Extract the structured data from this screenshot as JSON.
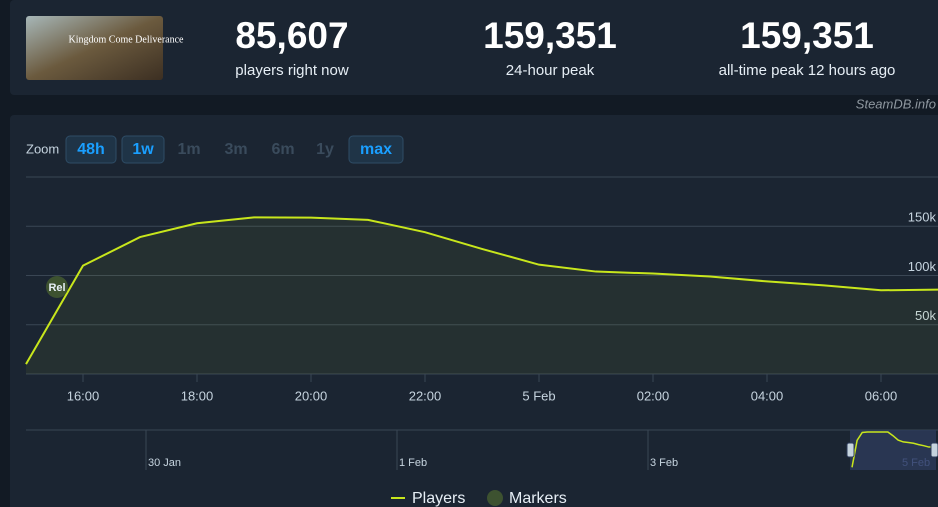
{
  "header": {
    "game_logo": "Kingdom Come Deliverance",
    "stats": [
      {
        "value": "85,607",
        "label": "players right now"
      },
      {
        "value": "159,351",
        "label": "24-hour peak"
      },
      {
        "value": "159,351",
        "label": "all-time peak 12 hours ago"
      }
    ],
    "credit": "SteamDB.info"
  },
  "zoom": {
    "label": "Zoom",
    "buttons": [
      {
        "text": "48h",
        "active": true
      },
      {
        "text": "1w",
        "active": true
      },
      {
        "text": "1m",
        "active": false
      },
      {
        "text": "3m",
        "active": false
      },
      {
        "text": "6m",
        "active": false
      },
      {
        "text": "1y",
        "active": false
      },
      {
        "text": "max",
        "active": true
      }
    ]
  },
  "chart_data": {
    "type": "line",
    "categories": [
      null,
      "16:00",
      null,
      "18:00",
      null,
      "20:00",
      null,
      "22:00",
      null,
      "5 Feb",
      null,
      "02:00",
      null,
      "04:00",
      null,
      "06:00",
      null
    ],
    "series": [
      {
        "name": "Players",
        "color": "#c8e61c",
        "values": [
          10000,
          110000,
          139000,
          153000,
          159000,
          158800,
          156500,
          144000,
          127000,
          111000,
          104000,
          102000,
          99000,
          94000,
          90000,
          85000,
          85607
        ]
      }
    ],
    "markers": {
      "name": "Markers",
      "color": "#3d5230",
      "labels": [
        "Rel"
      ]
    },
    "ylim": [
      0,
      200000
    ],
    "yticks": [
      {
        "value": 50000,
        "label": "50k"
      },
      {
        "value": 100000,
        "label": "100k"
      },
      {
        "value": 150000,
        "label": "150k"
      }
    ],
    "grid": true,
    "navigator": {
      "labels": [
        "30 Jan",
        "1 Feb",
        "3 Feb",
        "5 Feb"
      ]
    }
  }
}
